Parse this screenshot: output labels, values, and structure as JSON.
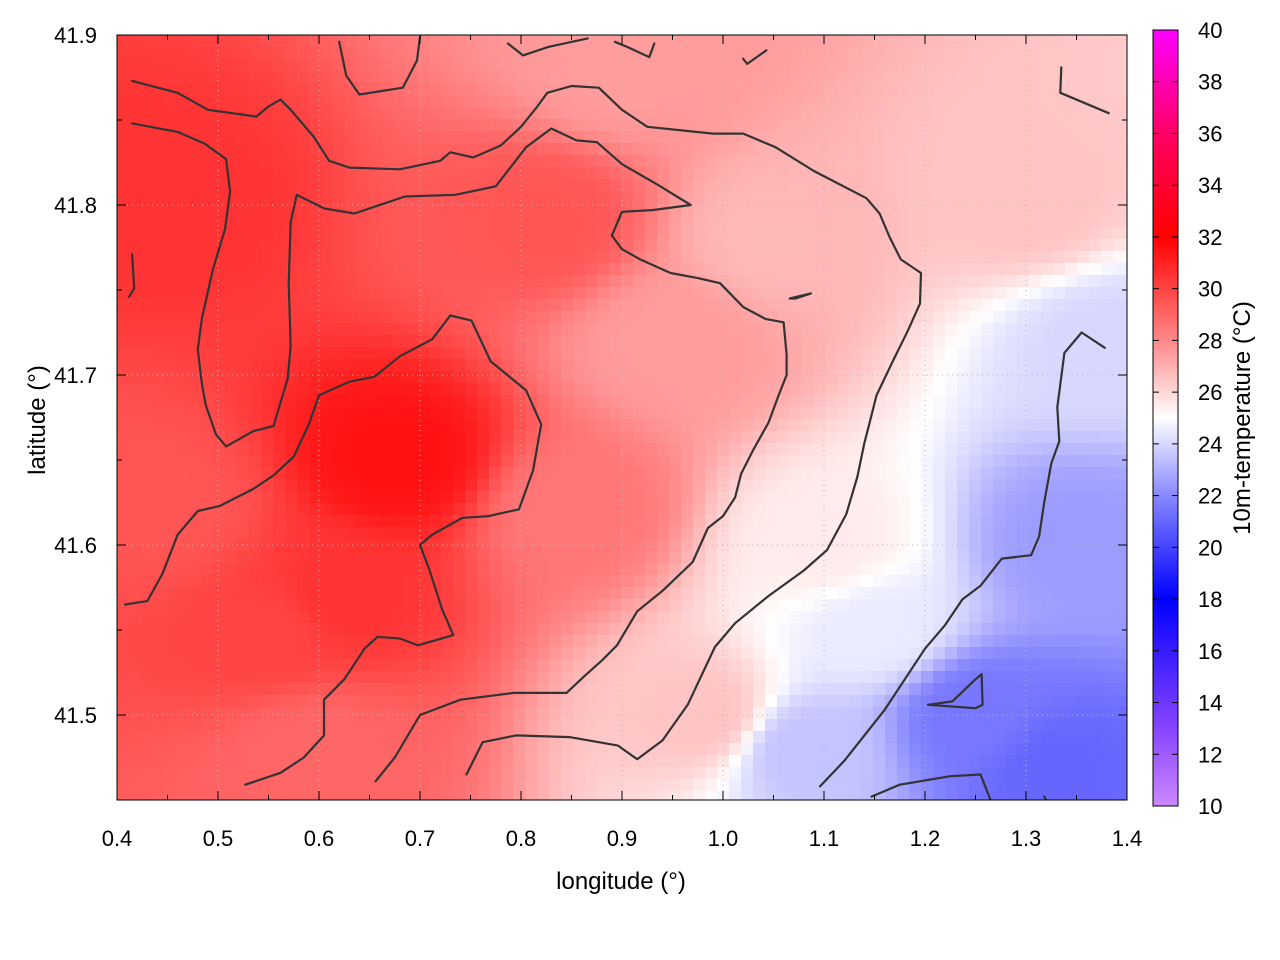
{
  "chart_data": {
    "type": "heatmap",
    "xlabel": "longitude (°)",
    "ylabel": "latitude (°)",
    "colorbar_label": "10m-temperature (°C)",
    "xlim": [
      0.4,
      1.4
    ],
    "ylim": [
      41.45,
      41.9
    ],
    "x_ticks": [
      "0.4",
      "0.5",
      "0.6",
      "0.7",
      "0.8",
      "0.9",
      "1.0",
      "1.1",
      "1.2",
      "1.3",
      "1.4"
    ],
    "y_ticks": [
      "41.5",
      "41.6",
      "41.7",
      "41.8",
      "41.9"
    ],
    "color_range": [
      10,
      40
    ],
    "color_ticks": [
      "10",
      "12",
      "14",
      "16",
      "18",
      "20",
      "22",
      "24",
      "26",
      "28",
      "30",
      "32",
      "34",
      "36",
      "38",
      "40"
    ],
    "colormap": [
      {
        "value": 10,
        "color": "#cc88ff"
      },
      {
        "value": 13,
        "color": "#8844ff"
      },
      {
        "value": 18,
        "color": "#0000ff"
      },
      {
        "value": 22,
        "color": "#8888ff"
      },
      {
        "value": 25,
        "color": "#ffffff"
      },
      {
        "value": 28,
        "color": "#ff8888"
      },
      {
        "value": 32,
        "color": "#ff0000"
      },
      {
        "value": 36,
        "color": "#ff0066"
      },
      {
        "value": 40,
        "color": "#ff00ff"
      }
    ],
    "grid": true,
    "field_samples": [
      {
        "x": 0.45,
        "y": 41.8,
        "t": 30.5
      },
      {
        "x": 0.68,
        "y": 41.65,
        "t": 31.5
      },
      {
        "x": 0.62,
        "y": 41.57,
        "t": 30.5
      },
      {
        "x": 0.55,
        "y": 41.55,
        "t": 30.0
      },
      {
        "x": 0.82,
        "y": 41.79,
        "t": 29.5
      },
      {
        "x": 0.85,
        "y": 41.62,
        "t": 28.5
      },
      {
        "x": 0.6,
        "y": 41.48,
        "t": 29.0
      },
      {
        "x": 0.95,
        "y": 41.72,
        "t": 27.5
      },
      {
        "x": 1.05,
        "y": 41.78,
        "t": 26.8
      },
      {
        "x": 1.3,
        "y": 41.8,
        "t": 26.5
      },
      {
        "x": 0.9,
        "y": 41.88,
        "t": 27.5
      },
      {
        "x": 1.1,
        "y": 41.6,
        "t": 25.5
      },
      {
        "x": 1.15,
        "y": 41.55,
        "t": 24.5
      },
      {
        "x": 1.25,
        "y": 41.5,
        "t": 21.5
      },
      {
        "x": 1.33,
        "y": 41.47,
        "t": 21.0
      },
      {
        "x": 1.35,
        "y": 41.6,
        "t": 22.5
      },
      {
        "x": 1.38,
        "y": 41.72,
        "t": 24.0
      },
      {
        "x": 1.08,
        "y": 41.48,
        "t": 23.5
      },
      {
        "x": 0.98,
        "y": 41.5,
        "t": 26.5
      },
      {
        "x": 0.45,
        "y": 41.62,
        "t": 29.5
      }
    ],
    "contours": [
      {
        "level": 30,
        "points": [
          [
            0.415,
            41.873
          ],
          [
            0.46,
            41.866
          ],
          [
            0.49,
            41.856
          ],
          [
            0.538,
            41.852
          ],
          [
            0.55,
            41.858
          ],
          [
            0.562,
            41.862
          ],
          [
            0.572,
            41.856
          ],
          [
            0.595,
            41.84
          ],
          [
            0.61,
            41.826
          ],
          [
            0.63,
            41.822
          ],
          [
            0.68,
            41.821
          ],
          [
            0.72,
            41.826
          ],
          [
            0.73,
            41.831
          ],
          [
            0.753,
            41.828
          ],
          [
            0.78,
            41.835
          ],
          [
            0.8,
            41.846
          ],
          [
            0.815,
            41.857
          ],
          [
            0.826,
            41.866
          ],
          [
            0.85,
            41.87
          ],
          [
            0.877,
            41.869
          ],
          [
            0.9,
            41.856
          ],
          [
            0.925,
            41.846
          ],
          [
            0.99,
            41.842
          ],
          [
            1.02,
            41.842
          ],
          [
            1.052,
            41.834
          ],
          [
            1.09,
            41.82
          ],
          [
            1.116,
            41.812
          ],
          [
            1.142,
            41.804
          ],
          [
            1.155,
            41.795
          ],
          [
            1.165,
            41.781
          ],
          [
            1.176,
            41.768
          ],
          [
            1.196,
            41.76
          ],
          [
            1.195,
            41.742
          ],
          [
            1.183,
            41.726
          ],
          [
            1.168,
            41.708
          ],
          [
            1.152,
            41.688
          ],
          [
            1.146,
            41.674
          ],
          [
            1.14,
            41.66
          ],
          [
            1.133,
            41.64
          ],
          [
            1.122,
            41.618
          ],
          [
            1.103,
            41.597
          ],
          [
            1.08,
            41.585
          ],
          [
            1.045,
            41.57
          ],
          [
            1.012,
            41.554
          ],
          [
            0.992,
            41.54
          ],
          [
            0.965,
            41.506
          ],
          [
            0.94,
            41.485
          ],
          [
            0.915,
            41.474
          ],
          [
            0.896,
            41.482
          ],
          [
            0.848,
            41.487
          ],
          [
            0.795,
            41.488
          ],
          [
            0.762,
            41.484
          ],
          [
            0.746,
            41.465
          ]
        ]
      },
      {
        "level": 30,
        "points": [
          [
            0.415,
            41.848
          ],
          [
            0.46,
            41.843
          ],
          [
            0.487,
            41.836
          ],
          [
            0.508,
            41.827
          ],
          [
            0.512,
            41.808
          ],
          [
            0.507,
            41.786
          ],
          [
            0.495,
            41.762
          ],
          [
            0.484,
            41.733
          ],
          [
            0.48,
            41.715
          ],
          [
            0.484,
            41.695
          ],
          [
            0.488,
            41.682
          ],
          [
            0.498,
            41.665
          ],
          [
            0.508,
            41.658
          ],
          [
            0.535,
            41.667
          ],
          [
            0.555,
            41.67
          ],
          [
            0.558,
            41.676
          ],
          [
            0.569,
            41.698
          ],
          [
            0.572,
            41.717
          ],
          [
            0.57,
            41.754
          ],
          [
            0.572,
            41.79
          ],
          [
            0.578,
            41.806
          ],
          [
            0.605,
            41.798
          ],
          [
            0.635,
            41.795
          ],
          [
            0.685,
            41.805
          ],
          [
            0.735,
            41.806
          ],
          [
            0.775,
            41.811
          ],
          [
            0.805,
            41.834
          ],
          [
            0.83,
            41.845
          ],
          [
            0.855,
            41.838
          ],
          [
            0.875,
            41.837
          ],
          [
            0.9,
            41.824
          ],
          [
            0.935,
            41.812
          ],
          [
            0.968,
            41.8
          ],
          [
            0.93,
            41.797
          ],
          [
            0.9,
            41.796
          ],
          [
            0.89,
            41.782
          ],
          [
            0.9,
            41.774
          ],
          [
            0.918,
            41.768
          ],
          [
            0.948,
            41.76
          ],
          [
            0.975,
            41.757
          ],
          [
            0.997,
            41.754
          ],
          [
            1.02,
            41.74
          ],
          [
            1.042,
            41.733
          ],
          [
            1.06,
            41.731
          ],
          [
            1.063,
            41.712
          ],
          [
            1.063,
            41.7
          ],
          [
            1.055,
            41.688
          ],
          [
            1.045,
            41.672
          ],
          [
            1.03,
            41.656
          ],
          [
            1.018,
            41.642
          ],
          [
            1.012,
            41.628
          ],
          [
            1.0,
            41.617
          ],
          [
            0.985,
            41.61
          ],
          [
            0.97,
            41.59
          ],
          [
            0.94,
            41.573
          ],
          [
            0.915,
            41.561
          ],
          [
            0.895,
            41.541
          ],
          [
            0.88,
            41.532
          ],
          [
            0.863,
            41.523
          ],
          [
            0.845,
            41.513
          ],
          [
            0.793,
            41.513
          ],
          [
            0.74,
            41.509
          ],
          [
            0.7,
            41.5
          ],
          [
            0.675,
            41.475
          ],
          [
            0.656,
            41.461
          ]
        ]
      },
      {
        "level": 30,
        "points": [
          [
            0.408,
            41.565
          ],
          [
            0.43,
            41.567
          ],
          [
            0.445,
            41.583
          ],
          [
            0.46,
            41.606
          ],
          [
            0.48,
            41.62
          ],
          [
            0.502,
            41.623
          ],
          [
            0.535,
            41.633
          ],
          [
            0.555,
            41.641
          ],
          [
            0.575,
            41.652
          ],
          [
            0.59,
            41.671
          ],
          [
            0.6,
            41.688
          ],
          [
            0.63,
            41.696
          ],
          [
            0.655,
            41.699
          ],
          [
            0.68,
            41.711
          ],
          [
            0.712,
            41.721
          ],
          [
            0.73,
            41.735
          ],
          [
            0.751,
            41.732
          ],
          [
            0.77,
            41.708
          ],
          [
            0.805,
            41.691
          ],
          [
            0.82,
            41.671
          ],
          [
            0.812,
            41.644
          ],
          [
            0.798,
            41.621
          ],
          [
            0.768,
            41.617
          ],
          [
            0.742,
            41.616
          ],
          [
            0.712,
            41.606
          ],
          [
            0.7,
            41.6
          ],
          [
            0.709,
            41.586
          ],
          [
            0.722,
            41.562
          ],
          [
            0.733,
            41.547
          ],
          [
            0.698,
            41.541
          ],
          [
            0.68,
            41.545
          ],
          [
            0.658,
            41.546
          ],
          [
            0.645,
            41.539
          ],
          [
            0.625,
            41.521
          ],
          [
            0.605,
            41.509
          ],
          [
            0.605,
            41.488
          ],
          [
            0.585,
            41.475
          ],
          [
            0.562,
            41.466
          ],
          [
            0.527,
            41.459
          ]
        ]
      },
      {
        "level": 30,
        "points": [
          [
            0.415,
            41.771
          ],
          [
            0.417,
            41.751
          ],
          [
            0.412,
            41.746
          ]
        ]
      },
      {
        "level": 25,
        "points": [
          [
            0.62,
            41.896
          ],
          [
            0.627,
            41.876
          ],
          [
            0.64,
            41.865
          ],
          [
            0.683,
            41.869
          ],
          [
            0.697,
            41.885
          ],
          [
            0.7,
            41.899
          ]
        ]
      },
      {
        "level": 25,
        "points": [
          [
            0.787,
            41.895
          ],
          [
            0.802,
            41.888
          ],
          [
            0.827,
            41.893
          ],
          [
            0.866,
            41.898
          ]
        ]
      },
      {
        "level": 25,
        "points": [
          [
            0.893,
            41.896
          ],
          [
            0.905,
            41.893
          ],
          [
            0.927,
            41.887
          ],
          [
            0.932,
            41.895
          ]
        ]
      },
      {
        "level": 25,
        "points": [
          [
            1.02,
            41.886
          ],
          [
            1.024,
            41.883
          ],
          [
            1.043,
            41.891
          ]
        ]
      },
      {
        "level": 25,
        "points": [
          [
            1.335,
            41.881
          ],
          [
            1.334,
            41.866
          ],
          [
            1.382,
            41.854
          ]
        ]
      },
      {
        "level": 25,
        "points": [
          [
            1.378,
            41.716
          ],
          [
            1.355,
            41.725
          ],
          [
            1.338,
            41.713
          ],
          [
            1.331,
            41.681
          ],
          [
            1.333,
            41.661
          ],
          [
            1.325,
            41.648
          ],
          [
            1.318,
            41.625
          ],
          [
            1.313,
            41.605
          ],
          [
            1.305,
            41.594
          ],
          [
            1.276,
            41.592
          ],
          [
            1.255,
            41.576
          ],
          [
            1.237,
            41.568
          ],
          [
            1.22,
            41.553
          ],
          [
            1.2,
            41.539
          ],
          [
            1.18,
            41.521
          ],
          [
            1.16,
            41.503
          ],
          [
            1.14,
            41.488
          ],
          [
            1.12,
            41.473
          ],
          [
            1.096,
            41.458
          ]
        ]
      },
      {
        "level": 25,
        "points": [
          [
            1.087,
            41.748
          ],
          [
            1.072,
            41.745
          ],
          [
            1.066,
            41.745
          ],
          [
            1.087,
            41.748
          ]
        ]
      },
      {
        "level": 20,
        "points": [
          [
            1.147,
            41.452
          ],
          [
            1.175,
            41.459
          ],
          [
            1.225,
            41.464
          ],
          [
            1.255,
            41.465
          ],
          [
            1.265,
            41.45
          ]
        ]
      },
      {
        "level": 20,
        "points": [
          [
            1.203,
            41.506
          ],
          [
            1.227,
            41.508
          ],
          [
            1.25,
            41.521
          ],
          [
            1.256,
            41.524
          ],
          [
            1.257,
            41.506
          ],
          [
            1.25,
            41.504
          ],
          [
            1.203,
            41.506
          ]
        ]
      },
      {
        "level": 20,
        "points": [
          [
            1.318,
            41.452
          ],
          [
            1.32,
            41.45
          ]
        ]
      }
    ]
  }
}
